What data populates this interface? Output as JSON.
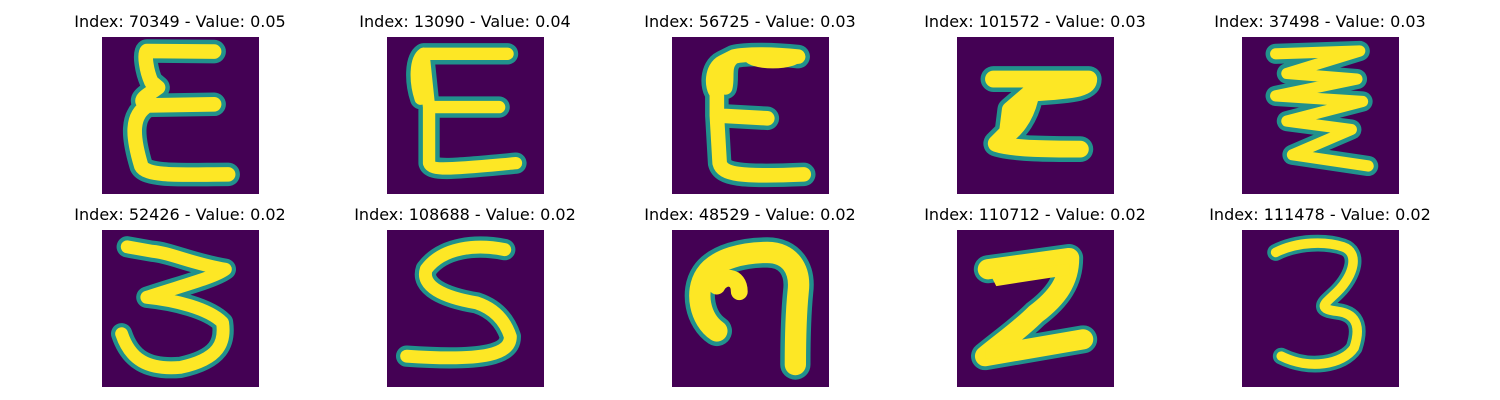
{
  "colors": {
    "background": "#440154",
    "edge_dark": "#31688e",
    "edge_mid": "#21918c",
    "edge_light": "#5ec962",
    "stroke": "#fde725"
  },
  "panels": [
    {
      "index_label": "Index: 70349",
      "value_label": "Value: 0.05",
      "title": "Index: 70349 - Value: 0.05",
      "glyph": "ε-like handwritten character"
    },
    {
      "index_label": "Index: 13090",
      "value_label": "Value: 0.04",
      "title": "Index: 13090 - Value: 0.04",
      "glyph": "E-like handwritten character"
    },
    {
      "index_label": "Index: 56725",
      "value_label": "Value: 0.03",
      "title": "Index: 56725 - Value: 0.03",
      "glyph": "E-like handwritten character"
    },
    {
      "index_label": "Index: 101572",
      "value_label": "Value: 0.03",
      "title": "Index: 101572 - Value: 0.03",
      "glyph": "Z-like handwritten character"
    },
    {
      "index_label": "Index: 37498",
      "value_label": "Value: 0.03",
      "title": "Index: 37498 - Value: 0.03",
      "glyph": "zigzag handwritten character"
    },
    {
      "index_label": "Index: 52426",
      "value_label": "Value: 0.02",
      "title": "Index: 52426 - Value: 0.02",
      "glyph": "3-like handwritten character"
    },
    {
      "index_label": "Index: 108688",
      "value_label": "Value: 0.02",
      "title": "Index: 108688 - Value: 0.02",
      "glyph": "S-like handwritten character"
    },
    {
      "index_label": "Index: 48529",
      "value_label": "Value: 0.02",
      "title": "Index: 48529 - Value: 0.02",
      "glyph": "hook handwritten character"
    },
    {
      "index_label": "Index: 110712",
      "value_label": "Value: 0.02",
      "title": "Index: 110712 - Value: 0.02",
      "glyph": "Z-like handwritten character"
    },
    {
      "index_label": "Index: 111478",
      "value_label": "Value: 0.02",
      "title": "Index: 111478 - Value: 0.02",
      "glyph": "3 handwritten character"
    }
  ]
}
